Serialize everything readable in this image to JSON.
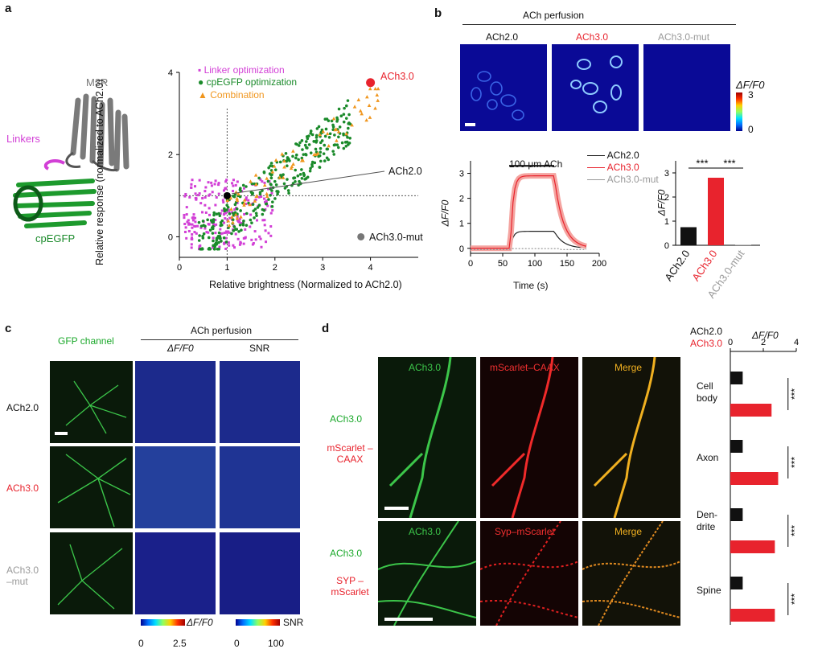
{
  "panel_a": {
    "label": "a",
    "structure": {
      "m3r": "M3R",
      "linkers": "Linkers",
      "cpegfp": "cpEGFP"
    },
    "colors": {
      "linker": "#d23fd6",
      "cpegfp": "#1a8a2a",
      "combination": "#f0961e",
      "highlight": "#e8232d"
    },
    "chart_data": {
      "type": "scatter",
      "xlabel": "Relative brightness (Normalized to ACh2.0)",
      "ylabel": "Relative response (normalized to ACh2.0)",
      "xlim": [
        0,
        5
      ],
      "ylim": [
        -0.5,
        4
      ],
      "xticks": [
        "0",
        "1",
        "2",
        "3",
        "4"
      ],
      "yticks": [
        "0",
        "2",
        "4"
      ],
      "legend": [
        "Linker optimization",
        "cpEGFP optimization",
        "Combination"
      ],
      "annotations": {
        "ach30": "ACh3.0",
        "ach20": "ACh2.0",
        "mut": "ACh3.0-mut"
      },
      "points": {
        "ach20": [
          1,
          1
        ],
        "ach30": [
          4,
          3.75
        ]
      }
    }
  },
  "panel_b": {
    "label": "b",
    "header": "ACh perfusion",
    "columns": [
      "ACh2.0",
      "ACh3.0",
      "ACh3.0-mut"
    ],
    "colorbar": {
      "label": "ΔF/F0",
      "max": "3",
      "min": "0"
    },
    "trace": {
      "chart_data": {
        "type": "line",
        "xlabel": "Time (s)",
        "ylabel": "ΔF/F0",
        "stim_label": "100 μm ACh",
        "xticks": [
          "0",
          "50",
          "100",
          "150",
          "200"
        ],
        "yticks": [
          "0",
          "1",
          "2",
          "3"
        ],
        "xlim": [
          0,
          200
        ],
        "ylim": [
          -0.2,
          3.5
        ],
        "series": [
          {
            "name": "ACh2.0",
            "plateau": 0.68,
            "color": "#222222"
          },
          {
            "name": "ACh3.0",
            "plateau": 2.9,
            "color": "#e8232d"
          },
          {
            "name": "ACh3.0-mut",
            "plateau": 0.0,
            "color": "#999999"
          }
        ]
      }
    },
    "bars": {
      "chart_data": {
        "type": "bar",
        "ylabel": "ΔF/F0",
        "categories": [
          "ACh2.0",
          "ACh3.0",
          "ACh3.0-mut"
        ],
        "values": [
          0.75,
          2.8,
          0.02
        ],
        "colors": [
          "#111111",
          "#e8232d",
          "#9a9a9a"
        ],
        "yticks": [
          "0",
          "1",
          "2",
          "3"
        ],
        "ylim": [
          0,
          3.5
        ],
        "sig": [
          "***",
          "***"
        ]
      }
    }
  },
  "panel_c": {
    "label": "c",
    "gfp_header": "GFP channel",
    "perfusion_header": "ACh perfusion",
    "dff_header": "ΔF/F0",
    "snr_header": "SNR",
    "rows": [
      "ACh2.0",
      "ACh3.0",
      "ACh3.0 –mut"
    ],
    "colorbar_dff": {
      "label": "ΔF/F0",
      "min": "0",
      "max": "2.5"
    },
    "colorbar_snr": {
      "label": "SNR",
      "min": "0",
      "max": "100"
    }
  },
  "panel_d": {
    "label": "d",
    "row1": {
      "left_a": "ACh3.0",
      "left_b": "mScarlet –CAAX",
      "ch1": "ACh3.0",
      "ch2": "mScarlet–CAAX",
      "ch3": "Merge"
    },
    "row2": {
      "left_a": "ACh3.0",
      "left_b": "SYP –mScarlet",
      "ch1": "ACh3.0",
      "ch2": "Syp–mScarlet",
      "ch3": "Merge"
    },
    "chart_data": {
      "type": "bar",
      "orientation": "horizontal",
      "xlabel": "ΔF/F0",
      "legend": [
        "ACh2.0",
        "ACh3.0"
      ],
      "xticks": [
        "0",
        "2",
        "4"
      ],
      "xlim": [
        0,
        4
      ],
      "categories": [
        "Cell body",
        "Axon",
        "Den- drite",
        "Spine"
      ],
      "series": [
        {
          "name": "ACh2.0",
          "values": [
            0.75,
            0.75,
            0.75,
            0.75
          ],
          "color": "#111111"
        },
        {
          "name": "ACh3.0",
          "values": [
            2.5,
            2.9,
            2.7,
            2.7
          ],
          "color": "#e8232d"
        }
      ],
      "sig": [
        "***",
        "***",
        "***",
        "***"
      ]
    }
  }
}
